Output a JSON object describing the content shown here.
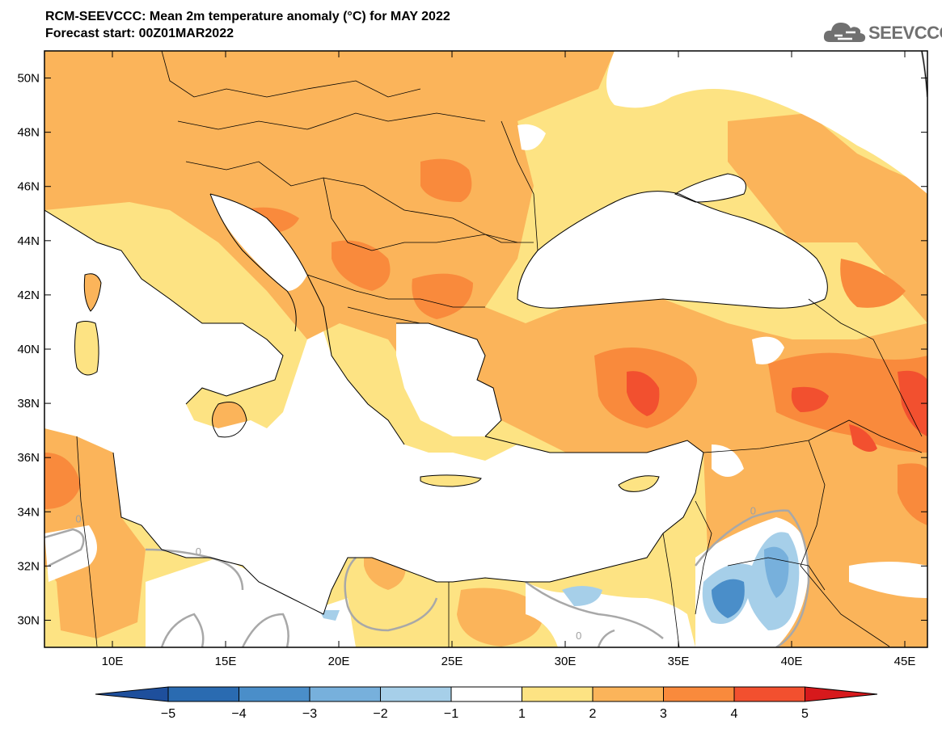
{
  "header": {
    "title_line1": "RCM-SEEVCCC: Mean 2m temperature anomaly (°C) for MAY 2022",
    "title_line2": "Forecast start: 00Z01MAR2022"
  },
  "logo": {
    "text": "SEEVCCC",
    "icon": "cloud-icon",
    "color": "#707070"
  },
  "map": {
    "lon_range": [
      7,
      46
    ],
    "lat_range": [
      29,
      51
    ],
    "x_ticks": [
      "10E",
      "15E",
      "20E",
      "25E",
      "30E",
      "35E",
      "40E",
      "45E"
    ],
    "x_tick_values": [
      10,
      15,
      20,
      25,
      30,
      35,
      40,
      45
    ],
    "y_ticks": [
      "30N",
      "32N",
      "34N",
      "36N",
      "38N",
      "40N",
      "42N",
      "44N",
      "46N",
      "48N",
      "50N"
    ],
    "y_tick_values": [
      30,
      32,
      34,
      36,
      38,
      40,
      42,
      44,
      46,
      48,
      50
    ],
    "contour_labels": [
      {
        "text": "0",
        "lon": 38.3,
        "lat": 33.9
      },
      {
        "text": "0",
        "lon": 13.8,
        "lat": 32.4
      },
      {
        "text": "0",
        "lon": 30.6,
        "lat": 29.3
      },
      {
        "text": "0",
        "lon": 8.5,
        "lat": 33.6
      }
    ]
  },
  "colorbar": {
    "levels": [
      "−5",
      "−4",
      "−3",
      "−2",
      "−1",
      "1",
      "2",
      "3",
      "4",
      "5"
    ],
    "colors": [
      "#1e4f9c",
      "#2a6bb1",
      "#4a8ec9",
      "#77b0dc",
      "#a6cfe9",
      "#ffffff",
      "#fde383",
      "#fbb45a",
      "#f98a3c",
      "#f2502f",
      "#d7191c"
    ],
    "extend": "both"
  }
}
